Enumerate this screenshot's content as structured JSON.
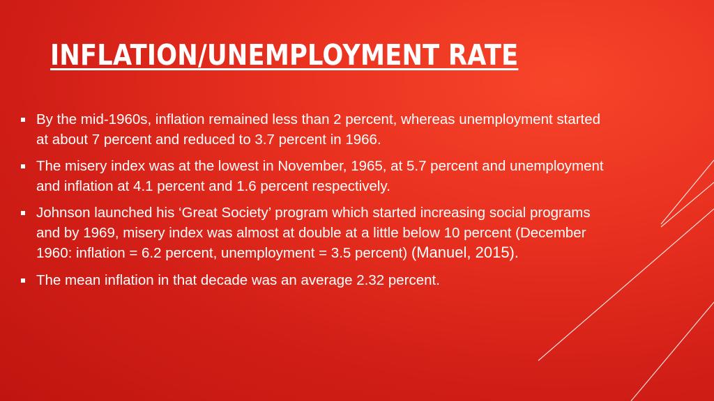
{
  "slide": {
    "title": "INFLATION/UNEMPLOYMENT RATE",
    "bullets": [
      {
        "text": "By the mid-1960s, inflation remained less than 2 percent, whereas unemployment started at about 7 percent and reduced to 3.7 percent in 1966."
      },
      {
        "text": "The misery index was at the lowest in November, 1965, at 5.7 percent and unemployment and inflation at 4.1 percent and 1.6 percent respectively."
      },
      {
        "text": "Johnson launched his ‘Great Society’ program which started increasing social programs and by 1969, misery index was almost at double at a little below 10 percent (December 1960: inflation = 6.2 percent, unemployment = 3.5 percent) ",
        "citation": "(Manuel, 2015)."
      },
      {
        "text": "The mean inflation in that decade was an average 2.32 percent."
      }
    ]
  },
  "theme": {
    "background": "#d21f17",
    "text_color": "#ffffff"
  }
}
